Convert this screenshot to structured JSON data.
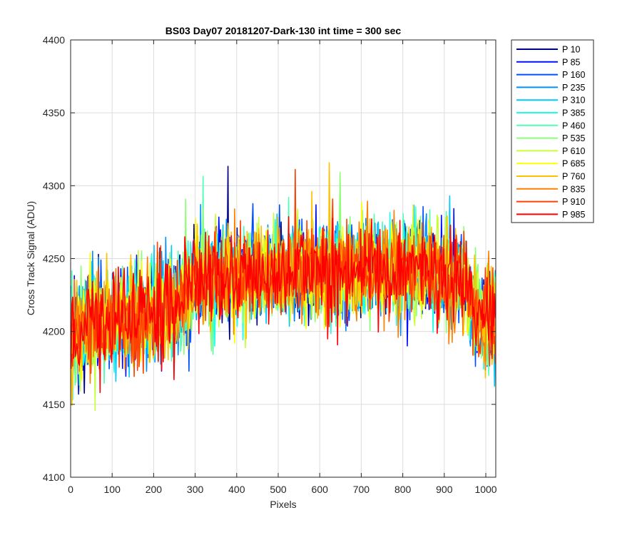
{
  "chart_data": {
    "type": "line",
    "title": "BS03 Day07 20181207-Dark-130 int time = 300 sec",
    "xlabel": "Pixels",
    "ylabel": "Cross Track Signal (ADU)",
    "xlim": [
      0,
      1024
    ],
    "ylim": [
      4100,
      4400
    ],
    "xticks": [
      0,
      100,
      200,
      300,
      400,
      500,
      600,
      700,
      800,
      900,
      1000
    ],
    "yticks": [
      4100,
      4150,
      4200,
      4250,
      4300,
      4350,
      4400
    ],
    "grid": true,
    "legend_position": "outside-top-right",
    "baseline_trend": [
      {
        "x": 0,
        "y": 4195
      },
      {
        "x": 50,
        "y": 4205
      },
      {
        "x": 100,
        "y": 4208
      },
      {
        "x": 200,
        "y": 4212
      },
      {
        "x": 260,
        "y": 4218
      },
      {
        "x": 300,
        "y": 4235
      },
      {
        "x": 400,
        "y": 4238
      },
      {
        "x": 500,
        "y": 4240
      },
      {
        "x": 600,
        "y": 4242
      },
      {
        "x": 700,
        "y": 4243
      },
      {
        "x": 800,
        "y": 4242
      },
      {
        "x": 900,
        "y": 4238
      },
      {
        "x": 950,
        "y": 4232
      },
      {
        "x": 970,
        "y": 4215
      },
      {
        "x": 1024,
        "y": 4205
      }
    ],
    "noise_amplitude": 26,
    "series": [
      {
        "name": "P 10",
        "color": "#00008f"
      },
      {
        "name": "P 85",
        "color": "#0010ff"
      },
      {
        "name": "P 160",
        "color": "#0050ff"
      },
      {
        "name": "P 235",
        "color": "#0090ff"
      },
      {
        "name": "P 310",
        "color": "#00c8ff"
      },
      {
        "name": "P 385",
        "color": "#1affe6"
      },
      {
        "name": "P 460",
        "color": "#50ffb0"
      },
      {
        "name": "P 535",
        "color": "#8aff75"
      },
      {
        "name": "P 610",
        "color": "#c8ff38"
      },
      {
        "name": "P 685",
        "color": "#ffff00"
      },
      {
        "name": "P 760",
        "color": "#ffc000"
      },
      {
        "name": "P 835",
        "color": "#ff8000"
      },
      {
        "name": "P 910",
        "color": "#ff4000"
      },
      {
        "name": "P 985",
        "color": "#ff0000"
      }
    ]
  }
}
